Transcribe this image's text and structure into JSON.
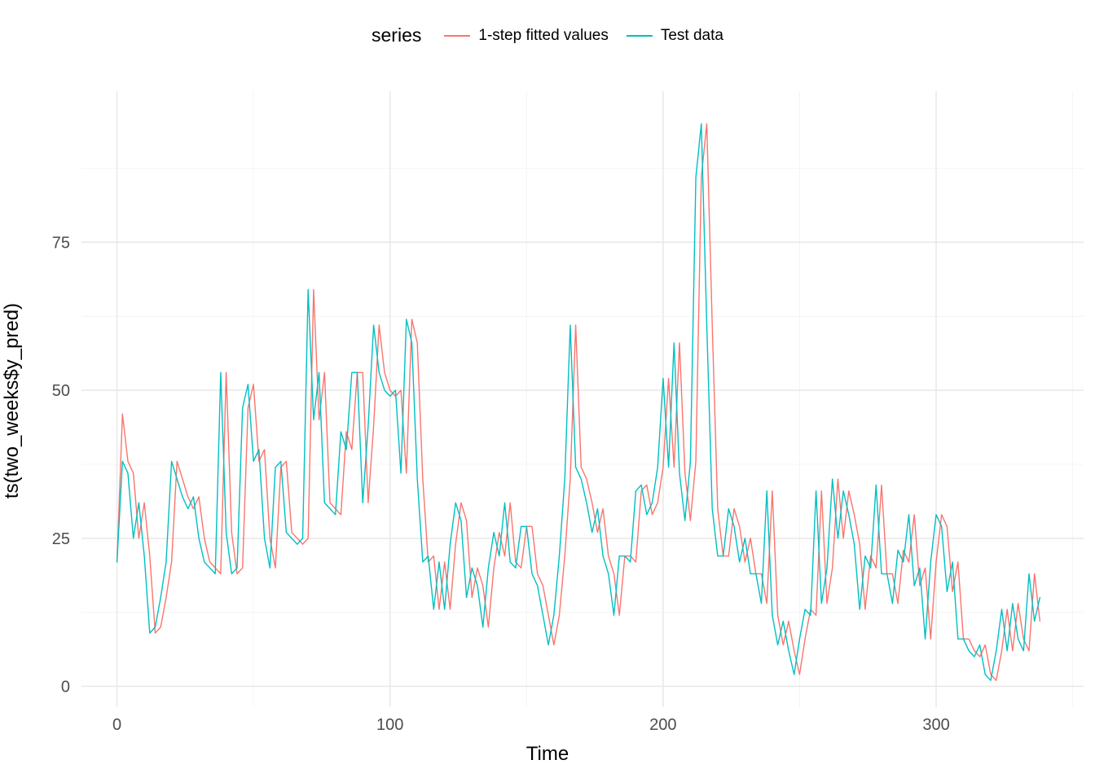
{
  "chart_data": {
    "type": "line",
    "legend_title": "series",
    "xlabel": "Time",
    "ylabel": "ts(two_weeks$y_pred)",
    "x_start": 0,
    "x_step": 2,
    "xlim": [
      -13,
      354
    ],
    "ylim": [
      -3.5,
      100.5
    ],
    "x_ticks": [
      0,
      100,
      200,
      300
    ],
    "y_ticks": [
      0,
      25,
      50,
      75
    ],
    "x_minor_ticks": [
      50,
      150,
      250,
      350
    ],
    "y_minor_ticks": [
      12.5,
      37.5,
      62.5,
      87.5
    ],
    "grid": true,
    "legend_position": "top",
    "background_color": "#FFFFFF",
    "major_grid_color": "#E8E8E8",
    "minor_grid_color": "#F4F4F4",
    "tick_label_color": "#4D4D4D",
    "series": [
      {
        "name": "1-step fitted values",
        "color": "#F8766D",
        "values": [
          21,
          46,
          38,
          36,
          25,
          31,
          22,
          9,
          10,
          15,
          21,
          38,
          35,
          32,
          30,
          32,
          25,
          21,
          20,
          19,
          53,
          26,
          19,
          20,
          47,
          51,
          38,
          40,
          25,
          20,
          37,
          38,
          26,
          25,
          24,
          25,
          67,
          45,
          53,
          31,
          30,
          29,
          43,
          40,
          53,
          53,
          31,
          44,
          61,
          53,
          50,
          49,
          50,
          36,
          62,
          58,
          35,
          21,
          22,
          13,
          21,
          13,
          24,
          31,
          28,
          15,
          20,
          17,
          10,
          20,
          26,
          22,
          31,
          21,
          20,
          27,
          27,
          19,
          17,
          12,
          7,
          12,
          22,
          35,
          61,
          37,
          35,
          31,
          26,
          30,
          22,
          19,
          12,
          22,
          22,
          21,
          33,
          34,
          29,
          31,
          37,
          52,
          37,
          58,
          36,
          28,
          38,
          86,
          95,
          61,
          30,
          22,
          22,
          30,
          27,
          21,
          25,
          19,
          19,
          14,
          33,
          12,
          7,
          11,
          6,
          2,
          8,
          13,
          12,
          33,
          14,
          20,
          35,
          25,
          33,
          29,
          24,
          13,
          22,
          20,
          34,
          19,
          19,
          14,
          23,
          21,
          29,
          17,
          20,
          8,
          21,
          29,
          27,
          16,
          21,
          8,
          8,
          6,
          5,
          7,
          2,
          1,
          6,
          13,
          6,
          14,
          8,
          6,
          19,
          11
        ]
      },
      {
        "name": "Test data",
        "color": "#00BFC4",
        "values": [
          21,
          38,
          36,
          25,
          31,
          22,
          9,
          10,
          15,
          21,
          38,
          35,
          32,
          30,
          32,
          25,
          21,
          20,
          19,
          53,
          26,
          19,
          20,
          47,
          51,
          38,
          40,
          25,
          20,
          37,
          38,
          26,
          25,
          24,
          25,
          67,
          45,
          53,
          31,
          30,
          29,
          43,
          40,
          53,
          53,
          31,
          44,
          61,
          53,
          50,
          49,
          50,
          36,
          62,
          58,
          35,
          21,
          22,
          13,
          21,
          13,
          24,
          31,
          28,
          15,
          20,
          17,
          10,
          20,
          26,
          22,
          31,
          21,
          20,
          27,
          27,
          19,
          17,
          12,
          7,
          12,
          22,
          35,
          61,
          37,
          35,
          31,
          26,
          30,
          22,
          19,
          12,
          22,
          22,
          21,
          33,
          34,
          29,
          31,
          37,
          52,
          37,
          58,
          36,
          28,
          38,
          86,
          95,
          61,
          30,
          22,
          22,
          30,
          27,
          21,
          25,
          19,
          19,
          14,
          33,
          12,
          7,
          11,
          6,
          2,
          8,
          13,
          12,
          33,
          14,
          20,
          35,
          25,
          33,
          29,
          24,
          13,
          22,
          20,
          34,
          19,
          19,
          14,
          23,
          21,
          29,
          17,
          20,
          8,
          21,
          29,
          27,
          16,
          21,
          8,
          8,
          6,
          5,
          7,
          2,
          1,
          6,
          13,
          6,
          14,
          8,
          6,
          19,
          11,
          15
        ]
      }
    ]
  }
}
